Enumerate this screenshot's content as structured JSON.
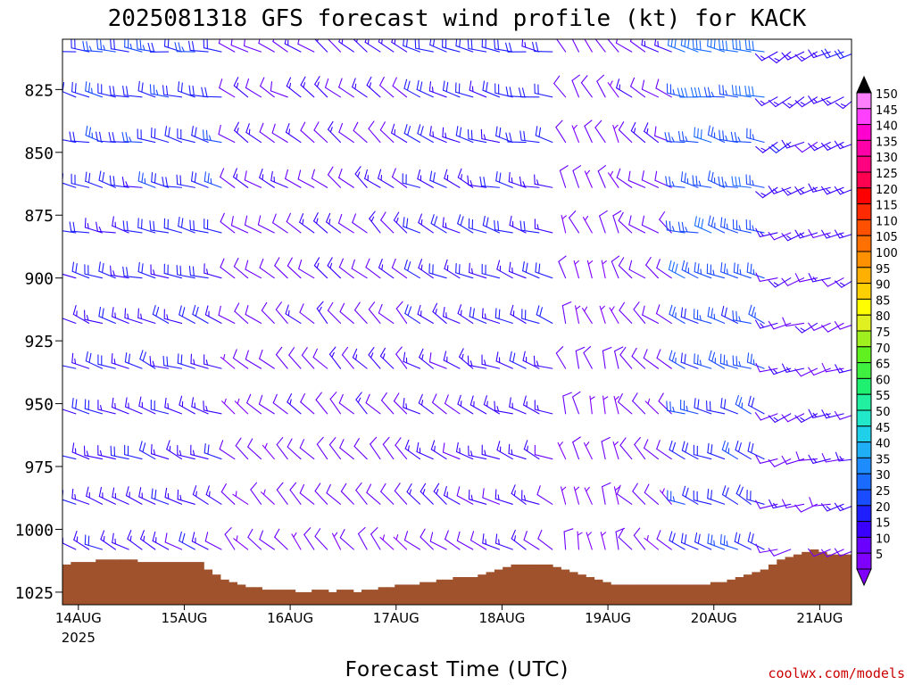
{
  "chart_data": {
    "type": "wind_profile",
    "title": "2025081318 GFS forecast wind profile (kt) for KACK",
    "xlabel": "Forecast Time (UTC)",
    "ylabel": "",
    "credit": "coolwx.com/models",
    "y_axis": {
      "unit": "hPa",
      "range": [
        1030,
        805
      ],
      "ticks": [
        825,
        850,
        875,
        900,
        925,
        950,
        975,
        1000,
        1025
      ]
    },
    "x_axis": {
      "range_days": [
        -0.15,
        7.3
      ],
      "ticks": [
        {
          "label": "14AUG",
          "sub": "2025",
          "day": 0
        },
        {
          "label": "15AUG",
          "sub": "",
          "day": 1
        },
        {
          "label": "16AUG",
          "sub": "",
          "day": 2
        },
        {
          "label": "17AUG",
          "sub": "",
          "day": 3
        },
        {
          "label": "18AUG",
          "sub": "",
          "day": 4
        },
        {
          "label": "19AUG",
          "sub": "",
          "day": 5
        },
        {
          "label": "20AUG",
          "sub": "",
          "day": 6
        },
        {
          "label": "21AUG",
          "sub": "",
          "day": 7
        }
      ]
    },
    "colorbar": {
      "labels": [
        "5",
        "10",
        "15",
        "20",
        "25",
        "30",
        "35",
        "40",
        "45",
        "50",
        "55",
        "60",
        "65",
        "70",
        "75",
        "80",
        "85",
        "90",
        "95",
        "100",
        "105",
        "110",
        "115",
        "120",
        "125",
        "130",
        "135",
        "140",
        "145",
        "150"
      ],
      "colors": [
        "#8000ff",
        "#6a00ff",
        "#3a00ff",
        "#1e1eff",
        "#1a4cff",
        "#1a6cff",
        "#1c8cff",
        "#20aef5",
        "#20d0e8",
        "#20e8c8",
        "#20f0a0",
        "#20f070",
        "#40f040",
        "#60f020",
        "#a0f020",
        "#e0f020",
        "#ffff00",
        "#ffd000",
        "#ffb000",
        "#ff9000",
        "#ff7000",
        "#ff5000",
        "#ff2a00",
        "#ff0000",
        "#ff0050",
        "#ff0080",
        "#ff00a8",
        "#ff00d0",
        "#ff40ff",
        "#ff80ff"
      ],
      "top_triangle": "#000000",
      "bottom_triangle": "#8000ff"
    },
    "levels_hPa": [
      810,
      828,
      846,
      864,
      882,
      900,
      918,
      936,
      954,
      972,
      990,
      1008,
      1026
    ],
    "series": [
      {
        "days": [
          -0.1,
          1.4
        ],
        "dir": 280,
        "speed": 22,
        "variability": 1
      },
      {
        "days": [
          1.4,
          2.1
        ],
        "dir": 300,
        "speed": 12,
        "variability": 1
      },
      {
        "days": [
          2.1,
          3.2
        ],
        "dir": 305,
        "speed": 14,
        "variability": 1
      },
      {
        "days": [
          3.2,
          3.8
        ],
        "dir": 290,
        "speed": 19,
        "variability": 1
      },
      {
        "days": [
          3.8,
          4.5
        ],
        "dir": 280,
        "speed": 20,
        "variability": 1
      },
      {
        "days": [
          4.5,
          5.2
        ],
        "dir": 330,
        "speed": 10,
        "variability": 1
      },
      {
        "days": [
          5.2,
          5.7
        ],
        "dir": 300,
        "speed": 12,
        "variability": 1
      },
      {
        "days": [
          5.7,
          6.6
        ],
        "dir": 280,
        "speed": 30,
        "variability": 1
      },
      {
        "days": [
          6.6,
          7.3
        ],
        "dir": 240,
        "speed": 16,
        "variability": 1
      }
    ],
    "surface_pressure": [
      1014,
      1013,
      1013,
      1013,
      1012,
      1012,
      1012,
      1012,
      1012,
      1013,
      1013,
      1013,
      1013,
      1013,
      1013,
      1013,
      1013,
      1016,
      1018,
      1020,
      1021,
      1022,
      1023,
      1023,
      1024,
      1024,
      1024,
      1024,
      1025,
      1025,
      1024,
      1024,
      1025,
      1024,
      1024,
      1025,
      1024,
      1024,
      1023,
      1023,
      1022,
      1022,
      1022,
      1021,
      1021,
      1020,
      1020,
      1019,
      1019,
      1019,
      1018,
      1017,
      1016,
      1015,
      1014,
      1014,
      1014,
      1014,
      1014,
      1015,
      1016,
      1017,
      1018,
      1019,
      1020,
      1021,
      1022,
      1022,
      1022,
      1022,
      1022,
      1022,
      1022,
      1022,
      1022,
      1022,
      1022,
      1022,
      1021,
      1021,
      1020,
      1019,
      1018,
      1017,
      1016,
      1014,
      1012,
      1011,
      1010,
      1009,
      1008,
      1009,
      1010,
      1010,
      1010
    ],
    "ground_color": "#a0522d"
  }
}
